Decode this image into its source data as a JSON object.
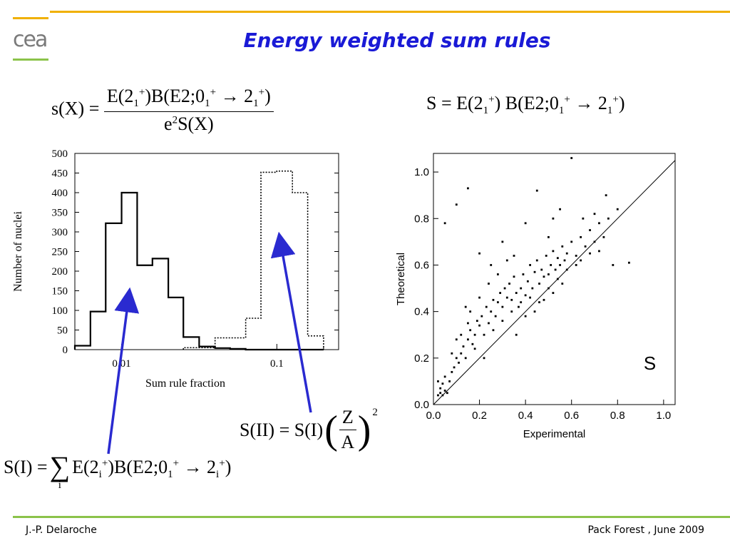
{
  "header": {
    "title": "Energy weighted sum rules",
    "logo_text": "cea"
  },
  "footer": {
    "author": "J.-P. Delaroche",
    "event": "Pack Forest , June 2009"
  },
  "colors": {
    "accent_top": "#f0b000",
    "accent_bottom": "#8bc34a",
    "title": "#1a1ad6",
    "arrow": "#2a2ad0"
  },
  "chart_data": [
    {
      "type": "histogram",
      "xlabel": "Sum rule fraction",
      "ylabel": "Number of nuclei",
      "xscale": "log",
      "xlim": [
        0.005,
        0.25
      ],
      "ylim": [
        0,
        500
      ],
      "xticks": [
        0.01,
        0.1
      ],
      "xtick_labels": [
        "0.01",
        "0.1"
      ],
      "yticks": [
        0,
        50,
        100,
        150,
        200,
        250,
        300,
        350,
        400,
        450,
        500
      ],
      "series": [
        {
          "style": "solid",
          "bin_edges": [
            0.005,
            0.0063,
            0.0079,
            0.01,
            0.0126,
            0.0158,
            0.02,
            0.025,
            0.0316,
            0.04,
            0.05,
            0.063,
            0.2
          ],
          "counts": [
            10,
            97,
            322,
            400,
            215,
            232,
            133,
            32,
            8,
            4,
            2,
            0
          ]
        },
        {
          "style": "dotted",
          "bin_edges": [
            0.025,
            0.04,
            0.063,
            0.079,
            0.1,
            0.126,
            0.158,
            0.2
          ],
          "counts": [
            5,
            30,
            80,
            452,
            455,
            400,
            35
          ]
        }
      ]
    },
    {
      "type": "scatter",
      "xlabel": "Experimental",
      "ylabel": "Theoretical",
      "xlim": [
        0.0,
        1.05
      ],
      "ylim": [
        0.0,
        1.08
      ],
      "xticks": [
        0.0,
        0.2,
        0.4,
        0.6,
        0.8,
        1.0
      ],
      "xtick_labels": [
        "0.0",
        "0.2",
        "0.4",
        "0.6",
        "0.8",
        "1.0"
      ],
      "yticks": [
        0.0,
        0.2,
        0.4,
        0.6,
        0.8,
        1.0
      ],
      "ytick_labels": [
        "0.0",
        "0.2",
        "0.4",
        "0.6",
        "0.8",
        "1.0"
      ],
      "diagonal": true,
      "annotation": "S",
      "points": [
        [
          0.02,
          0.04
        ],
        [
          0.03,
          0.05
        ],
        [
          0.04,
          0.04
        ],
        [
          0.05,
          0.06
        ],
        [
          0.03,
          0.07
        ],
        [
          0.04,
          0.09
        ],
        [
          0.06,
          0.05
        ],
        [
          0.02,
          0.1
        ],
        [
          0.05,
          0.12
        ],
        [
          0.07,
          0.1
        ],
        [
          0.08,
          0.14
        ],
        [
          0.09,
          0.16
        ],
        [
          0.1,
          0.2
        ],
        [
          0.12,
          0.22
        ],
        [
          0.11,
          0.18
        ],
        [
          0.13,
          0.25
        ],
        [
          0.15,
          0.28
        ],
        [
          0.14,
          0.2
        ],
        [
          0.16,
          0.32
        ],
        [
          0.18,
          0.3
        ],
        [
          0.17,
          0.26
        ],
        [
          0.19,
          0.36
        ],
        [
          0.2,
          0.34
        ],
        [
          0.21,
          0.38
        ],
        [
          0.22,
          0.3
        ],
        [
          0.23,
          0.42
        ],
        [
          0.24,
          0.35
        ],
        [
          0.25,
          0.4
        ],
        [
          0.26,
          0.45
        ],
        [
          0.27,
          0.38
        ],
        [
          0.28,
          0.44
        ],
        [
          0.29,
          0.48
        ],
        [
          0.3,
          0.42
        ],
        [
          0.31,
          0.5
        ],
        [
          0.32,
          0.46
        ],
        [
          0.33,
          0.52
        ],
        [
          0.34,
          0.45
        ],
        [
          0.35,
          0.55
        ],
        [
          0.36,
          0.48
        ],
        [
          0.37,
          0.42
        ],
        [
          0.38,
          0.5
        ],
        [
          0.39,
          0.56
        ],
        [
          0.4,
          0.47
        ],
        [
          0.41,
          0.53
        ],
        [
          0.42,
          0.6
        ],
        [
          0.43,
          0.5
        ],
        [
          0.44,
          0.57
        ],
        [
          0.45,
          0.62
        ],
        [
          0.46,
          0.52
        ],
        [
          0.47,
          0.58
        ],
        [
          0.48,
          0.55
        ],
        [
          0.49,
          0.64
        ],
        [
          0.5,
          0.56
        ],
        [
          0.51,
          0.6
        ],
        [
          0.52,
          0.66
        ],
        [
          0.53,
          0.58
        ],
        [
          0.54,
          0.63
        ],
        [
          0.55,
          0.6
        ],
        [
          0.56,
          0.68
        ],
        [
          0.57,
          0.62
        ],
        [
          0.58,
          0.65
        ],
        [
          0.6,
          0.7
        ],
        [
          0.62,
          0.64
        ],
        [
          0.64,
          0.72
        ],
        [
          0.66,
          0.68
        ],
        [
          0.68,
          0.75
        ],
        [
          0.7,
          0.7
        ],
        [
          0.72,
          0.78
        ],
        [
          0.74,
          0.72
        ],
        [
          0.76,
          0.8
        ],
        [
          0.45,
          0.92
        ],
        [
          0.6,
          1.06
        ],
        [
          0.05,
          0.78
        ],
        [
          0.1,
          0.86
        ],
        [
          0.15,
          0.93
        ],
        [
          0.85,
          0.61
        ],
        [
          0.78,
          0.6
        ],
        [
          0.8,
          0.84
        ],
        [
          0.52,
          0.8
        ],
        [
          0.7,
          0.82
        ],
        [
          0.2,
          0.65
        ],
        [
          0.25,
          0.6
        ],
        [
          0.3,
          0.7
        ],
        [
          0.35,
          0.64
        ],
        [
          0.4,
          0.78
        ],
        [
          0.55,
          0.84
        ],
        [
          0.65,
          0.8
        ],
        [
          0.75,
          0.9
        ],
        [
          0.68,
          0.65
        ],
        [
          0.5,
          0.72
        ],
        [
          0.12,
          0.3
        ],
        [
          0.15,
          0.35
        ],
        [
          0.18,
          0.24
        ],
        [
          0.22,
          0.2
        ],
        [
          0.26,
          0.32
        ],
        [
          0.3,
          0.36
        ],
        [
          0.34,
          0.4
        ],
        [
          0.38,
          0.44
        ],
        [
          0.42,
          0.46
        ],
        [
          0.46,
          0.44
        ],
        [
          0.5,
          0.5
        ],
        [
          0.54,
          0.54
        ],
        [
          0.58,
          0.58
        ],
        [
          0.62,
          0.6
        ],
        [
          0.36,
          0.3
        ],
        [
          0.48,
          0.45
        ],
        [
          0.4,
          0.38
        ],
        [
          0.56,
          0.52
        ],
        [
          0.64,
          0.62
        ],
        [
          0.72,
          0.66
        ],
        [
          0.08,
          0.22
        ],
        [
          0.1,
          0.28
        ],
        [
          0.14,
          0.42
        ],
        [
          0.16,
          0.4
        ],
        [
          0.2,
          0.46
        ],
        [
          0.24,
          0.52
        ],
        [
          0.28,
          0.56
        ],
        [
          0.32,
          0.62
        ],
        [
          0.44,
          0.4
        ],
        [
          0.52,
          0.48
        ]
      ]
    }
  ],
  "equations": {
    "sx_lhs": "s(X) = ",
    "sx_num": "E(2",
    "sx_den": "e",
    "S_main": "S = E(2",
    "SI_lhs": "S(I) = ",
    "SII_lhs": "S(II) = S(I)",
    "Z": "Z",
    "A": "A",
    "sum_index": "i"
  }
}
